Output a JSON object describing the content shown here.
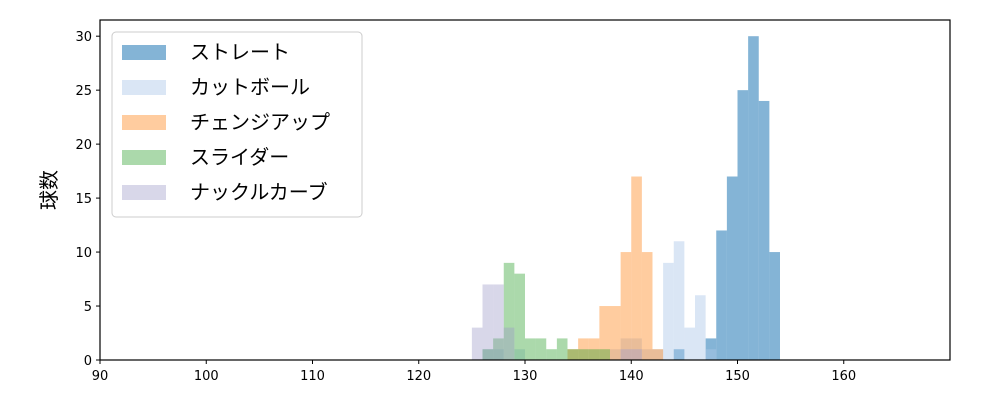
{
  "chart_data": {
    "type": "bar",
    "subtype": "overlapping-histogram",
    "ylabel": "球数",
    "xlabel": "",
    "xlim": [
      90,
      170
    ],
    "ylim": [
      0,
      31.5
    ],
    "xticks": [
      90,
      100,
      110,
      120,
      130,
      140,
      150,
      160
    ],
    "yticks": [
      0,
      5,
      10,
      15,
      20,
      25,
      30
    ],
    "bin_width": 1,
    "legend_position": "upper-left",
    "grid": false,
    "series": [
      {
        "name": "ストレート",
        "color": "#1f77b4",
        "opacity": 0.55,
        "bins": [
          [
            144,
            1
          ],
          [
            147,
            2
          ],
          [
            148,
            12
          ],
          [
            149,
            17
          ],
          [
            150,
            25
          ],
          [
            151,
            30
          ],
          [
            152,
            24
          ],
          [
            153,
            10
          ]
        ]
      },
      {
        "name": "カットボール",
        "color": "#aec7e8",
        "opacity": 0.45,
        "bins": [
          [
            126,
            1
          ],
          [
            127,
            1
          ],
          [
            129,
            1
          ],
          [
            138,
            1
          ],
          [
            139,
            2
          ],
          [
            140,
            2
          ],
          [
            141,
            1
          ],
          [
            142,
            1
          ],
          [
            143,
            9
          ],
          [
            144,
            11
          ],
          [
            145,
            3
          ],
          [
            146,
            6
          ],
          [
            147,
            1
          ]
        ]
      },
      {
        "name": "チェンジアップ",
        "color": "#ff7f0e",
        "opacity": 0.4,
        "bins": [
          [
            134,
            1
          ],
          [
            135,
            2
          ],
          [
            136,
            2
          ],
          [
            137,
            5
          ],
          [
            138,
            5
          ],
          [
            139,
            10
          ],
          [
            140,
            17
          ],
          [
            141,
            10
          ],
          [
            142,
            1
          ]
        ]
      },
      {
        "name": "スライダー",
        "color": "#2ca02c",
        "opacity": 0.4,
        "bins": [
          [
            126,
            1
          ],
          [
            127,
            2
          ],
          [
            128,
            9
          ],
          [
            129,
            8
          ],
          [
            130,
            2
          ],
          [
            131,
            2
          ],
          [
            132,
            1
          ],
          [
            133,
            2
          ],
          [
            134,
            1
          ],
          [
            135,
            1
          ],
          [
            136,
            1
          ],
          [
            137,
            1
          ]
        ]
      },
      {
        "name": "ナックルカーブ",
        "color": "#9e9ac8",
        "opacity": 0.4,
        "bins": [
          [
            125,
            3
          ],
          [
            126,
            7
          ],
          [
            127,
            7
          ],
          [
            128,
            3
          ],
          [
            139,
            1
          ],
          [
            140,
            1
          ]
        ]
      }
    ]
  }
}
